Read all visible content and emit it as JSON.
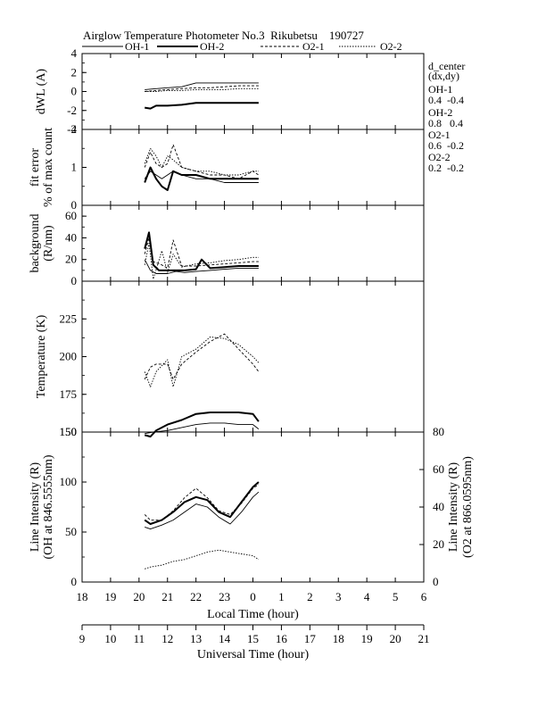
{
  "title": "Airglow Temperature Photometer No.3  Rikubetsu    190727",
  "legend": [
    {
      "name": "OH-1",
      "dash": "none",
      "width": 0.9
    },
    {
      "name": "OH-2",
      "dash": "none",
      "width": 2.0
    },
    {
      "name": "O2-1",
      "dash": "3,2",
      "width": 0.9
    },
    {
      "name": "O2-2",
      "dash": "1.5,1.5",
      "width": 0.9
    }
  ],
  "d_center": {
    "header": [
      "d_center",
      "(dx,dy)"
    ],
    "entries": [
      {
        "name": "OH-1",
        "values": "0.4  -0.4"
      },
      {
        "name": "OH-2",
        "values": "0.8   0.4"
      },
      {
        "name": "O2-1",
        "values": "0.6  -0.2"
      },
      {
        "name": "O2-2",
        "values": "0.2  -0.2"
      }
    ]
  },
  "chart_data": [
    {
      "type": "line",
      "ylabel": "dWL (A)",
      "ylim": [
        -4,
        4
      ],
      "yticks": [
        "4",
        "2",
        "0",
        "-2",
        "-4"
      ],
      "series": [
        {
          "name": "OH-1",
          "x": [
            20.2,
            20.6,
            21.0,
            21.5,
            22.0,
            22.5,
            23.0,
            23.5,
            24.0,
            24.2
          ],
          "y": [
            0.2,
            0.3,
            0.4,
            0.5,
            0.9,
            0.9,
            0.9,
            0.9,
            0.9,
            0.9
          ]
        },
        {
          "name": "OH-2",
          "x": [
            20.2,
            20.4,
            20.6,
            21.0,
            21.5,
            22.0,
            22.5,
            23.0,
            23.5,
            24.0,
            24.2
          ],
          "y": [
            -1.7,
            -1.8,
            -1.5,
            -1.5,
            -1.4,
            -1.2,
            -1.2,
            -1.2,
            -1.2,
            -1.2,
            -1.2
          ]
        },
        {
          "name": "O2-1",
          "x": [
            20.2,
            20.6,
            21.0,
            21.5,
            22.0,
            22.5,
            23.0,
            23.5,
            24.0,
            24.2
          ],
          "y": [
            0.0,
            0.1,
            0.2,
            0.3,
            0.4,
            0.4,
            0.5,
            0.6,
            0.6,
            0.6
          ]
        },
        {
          "name": "O2-2",
          "x": [
            20.2,
            20.6,
            21.0,
            21.5,
            22.0,
            22.5,
            23.0,
            23.5,
            24.0,
            24.2
          ],
          "y": [
            0.0,
            0.0,
            0.1,
            0.1,
            0.2,
            0.2,
            0.2,
            0.3,
            0.3,
            0.3
          ]
        }
      ]
    },
    {
      "type": "line",
      "ylabel": [
        "fit error",
        "% of max count"
      ],
      "yticks": [
        "2",
        "1",
        "0"
      ],
      "ylim": [
        0,
        2
      ],
      "series": [
        {
          "name": "OH-1",
          "x": [
            20.2,
            20.4,
            20.6,
            20.8,
            21.0,
            21.2,
            21.5,
            22.0,
            22.5,
            23.0,
            23.5,
            24.0,
            24.2
          ],
          "y": [
            0.7,
            0.9,
            0.8,
            0.7,
            0.8,
            0.9,
            0.8,
            0.7,
            0.7,
            0.6,
            0.6,
            0.6,
            0.6
          ]
        },
        {
          "name": "OH-2",
          "x": [
            20.2,
            20.4,
            20.6,
            20.8,
            21.0,
            21.2,
            21.5,
            22.0,
            22.5,
            23.0,
            23.5,
            24.0,
            24.2
          ],
          "y": [
            0.6,
            1.0,
            0.7,
            0.5,
            0.4,
            0.9,
            0.8,
            0.8,
            0.7,
            0.7,
            0.7,
            0.7,
            0.7
          ]
        },
        {
          "name": "O2-1",
          "x": [
            20.2,
            20.4,
            20.6,
            20.8,
            21.0,
            21.2,
            21.5,
            22.0,
            22.5,
            23.0,
            23.5,
            24.0,
            24.2
          ],
          "y": [
            1.0,
            1.4,
            1.1,
            1.0,
            1.1,
            1.6,
            1.0,
            0.9,
            0.8,
            0.8,
            0.7,
            0.9,
            0.8
          ]
        },
        {
          "name": "O2-2",
          "x": [
            20.2,
            20.4,
            20.6,
            20.8,
            21.0,
            21.2,
            21.5,
            22.0,
            22.5,
            23.0,
            23.5,
            24.0,
            24.2
          ],
          "y": [
            1.1,
            1.5,
            1.3,
            1.0,
            1.3,
            1.2,
            1.0,
            0.9,
            0.9,
            0.8,
            0.8,
            0.9,
            0.9
          ]
        }
      ]
    },
    {
      "type": "line",
      "ylabel": [
        "background",
        "(R/nm)"
      ],
      "ylim": [
        0,
        70
      ],
      "yticks": [
        "60",
        "40",
        "20",
        "0"
      ],
      "series": [
        {
          "name": "OH-1",
          "x": [
            20.2,
            20.4,
            20.6,
            21.0,
            21.3,
            21.6,
            22.0,
            22.5,
            23.0,
            23.5,
            24.0,
            24.2
          ],
          "y": [
            20,
            10,
            7,
            7,
            9,
            8,
            9,
            10,
            11,
            12,
            12,
            12
          ]
        },
        {
          "name": "OH-2",
          "x": [
            20.2,
            20.35,
            20.5,
            20.7,
            21.0,
            21.3,
            21.6,
            22.0,
            22.2,
            22.5,
            23.0,
            23.5,
            24.0,
            24.2
          ],
          "y": [
            30,
            45,
            15,
            10,
            10,
            10,
            10,
            11,
            20,
            12,
            13,
            14,
            14,
            14
          ]
        },
        {
          "name": "O2-1",
          "x": [
            20.2,
            20.35,
            20.5,
            20.8,
            21.0,
            21.2,
            21.5,
            22.0,
            22.5,
            23.0,
            23.5,
            24.0,
            24.2
          ],
          "y": [
            25,
            40,
            18,
            15,
            12,
            38,
            14,
            14,
            15,
            16,
            17,
            18,
            18
          ]
        },
        {
          "name": "O2-2",
          "x": [
            20.2,
            20.35,
            20.5,
            20.8,
            21.0,
            21.2,
            21.5,
            22.0,
            22.5,
            23.0,
            23.5,
            24.0,
            24.2
          ],
          "y": [
            15,
            35,
            2,
            28,
            8,
            25,
            13,
            16,
            17,
            19,
            20,
            22,
            22
          ]
        }
      ]
    },
    {
      "type": "line",
      "ylabel": "Temperature (K)",
      "ylim": [
        150,
        250
      ],
      "yticks": [
        "225",
        "200",
        "175",
        "150"
      ],
      "series": [
        {
          "name": "OH-1",
          "x": [
            20.2,
            20.5,
            21.0,
            21.5,
            22.0,
            22.5,
            23.0,
            23.5,
            24.0,
            24.2
          ],
          "y": [
            149,
            150,
            151,
            153,
            155,
            156,
            156,
            155,
            155,
            152
          ]
        },
        {
          "name": "OH-2",
          "x": [
            20.2,
            20.4,
            20.6,
            21.0,
            21.5,
            22.0,
            22.5,
            23.0,
            23.5,
            24.0,
            24.2
          ],
          "y": [
            148,
            147,
            151,
            155,
            158,
            162,
            163,
            163,
            163,
            162,
            157
          ]
        },
        {
          "name": "O2-1",
          "x": [
            20.2,
            20.4,
            20.6,
            21.0,
            21.2,
            21.5,
            22.0,
            22.5,
            23.0,
            23.5,
            24.0,
            24.2
          ],
          "y": [
            185,
            193,
            195,
            195,
            185,
            195,
            203,
            210,
            215,
            205,
            195,
            190
          ]
        },
        {
          "name": "O2-2",
          "x": [
            20.2,
            20.4,
            20.6,
            21.0,
            21.2,
            21.5,
            22.0,
            22.5,
            23.0,
            23.5,
            24.0,
            24.2
          ],
          "y": [
            190,
            180,
            190,
            198,
            180,
            200,
            205,
            213,
            212,
            208,
            200,
            196
          ]
        }
      ]
    },
    {
      "type": "line",
      "ylabel": [
        "Line Intensity (R)",
        "(OH at 846.5555nm)"
      ],
      "ylabel_right": [
        "Line Intensity (R)",
        "(O2 at 866.0595nm)"
      ],
      "ylim": [
        0,
        150
      ],
      "ylim_right": [
        0,
        80
      ],
      "yticks": [
        "150",
        "100",
        "50",
        "0"
      ],
      "yticks_right": [
        "80",
        "60",
        "40",
        "20",
        "0"
      ],
      "series": [
        {
          "name": "OH-1",
          "axis": "left",
          "x": [
            20.2,
            20.4,
            20.8,
            21.2,
            21.6,
            22.0,
            22.4,
            22.8,
            23.2,
            23.6,
            24.0,
            24.2
          ],
          "y": [
            55,
            53,
            57,
            62,
            70,
            78,
            75,
            65,
            58,
            70,
            85,
            90
          ]
        },
        {
          "name": "OH-2",
          "axis": "left",
          "x": [
            20.2,
            20.4,
            20.8,
            21.2,
            21.6,
            22.0,
            22.4,
            22.8,
            23.2,
            23.6,
            24.0,
            24.2
          ],
          "y": [
            62,
            58,
            62,
            70,
            80,
            85,
            82,
            70,
            65,
            80,
            95,
            100
          ]
        },
        {
          "name": "O2-1",
          "axis": "right",
          "x": [
            20.2,
            20.4,
            20.8,
            21.2,
            21.6,
            22.0,
            22.4,
            22.8,
            23.2,
            23.6,
            24.0,
            24.2
          ],
          "y": [
            36,
            33,
            33,
            38,
            45,
            50,
            45,
            38,
            36,
            42,
            50,
            52
          ]
        },
        {
          "name": "O2-2",
          "axis": "right",
          "x": [
            20.2,
            20.4,
            20.8,
            21.2,
            21.6,
            22.0,
            22.4,
            22.8,
            23.2,
            23.6,
            24.0,
            24.2
          ],
          "y": [
            7,
            8,
            9,
            11,
            12,
            14,
            16,
            17,
            16,
            15,
            14,
            12
          ]
        }
      ]
    }
  ],
  "x_local": {
    "label": "Local Time (hour)",
    "ticks": [
      "18",
      "19",
      "20",
      "21",
      "22",
      "23",
      "0",
      "1",
      "2",
      "3",
      "4",
      "5",
      "6"
    ]
  },
  "x_universal": {
    "label": "Universal Time (hour)",
    "ticks": [
      "9",
      "10",
      "11",
      "12",
      "13",
      "14",
      "15",
      "16",
      "17",
      "18",
      "19",
      "20",
      "21"
    ]
  }
}
